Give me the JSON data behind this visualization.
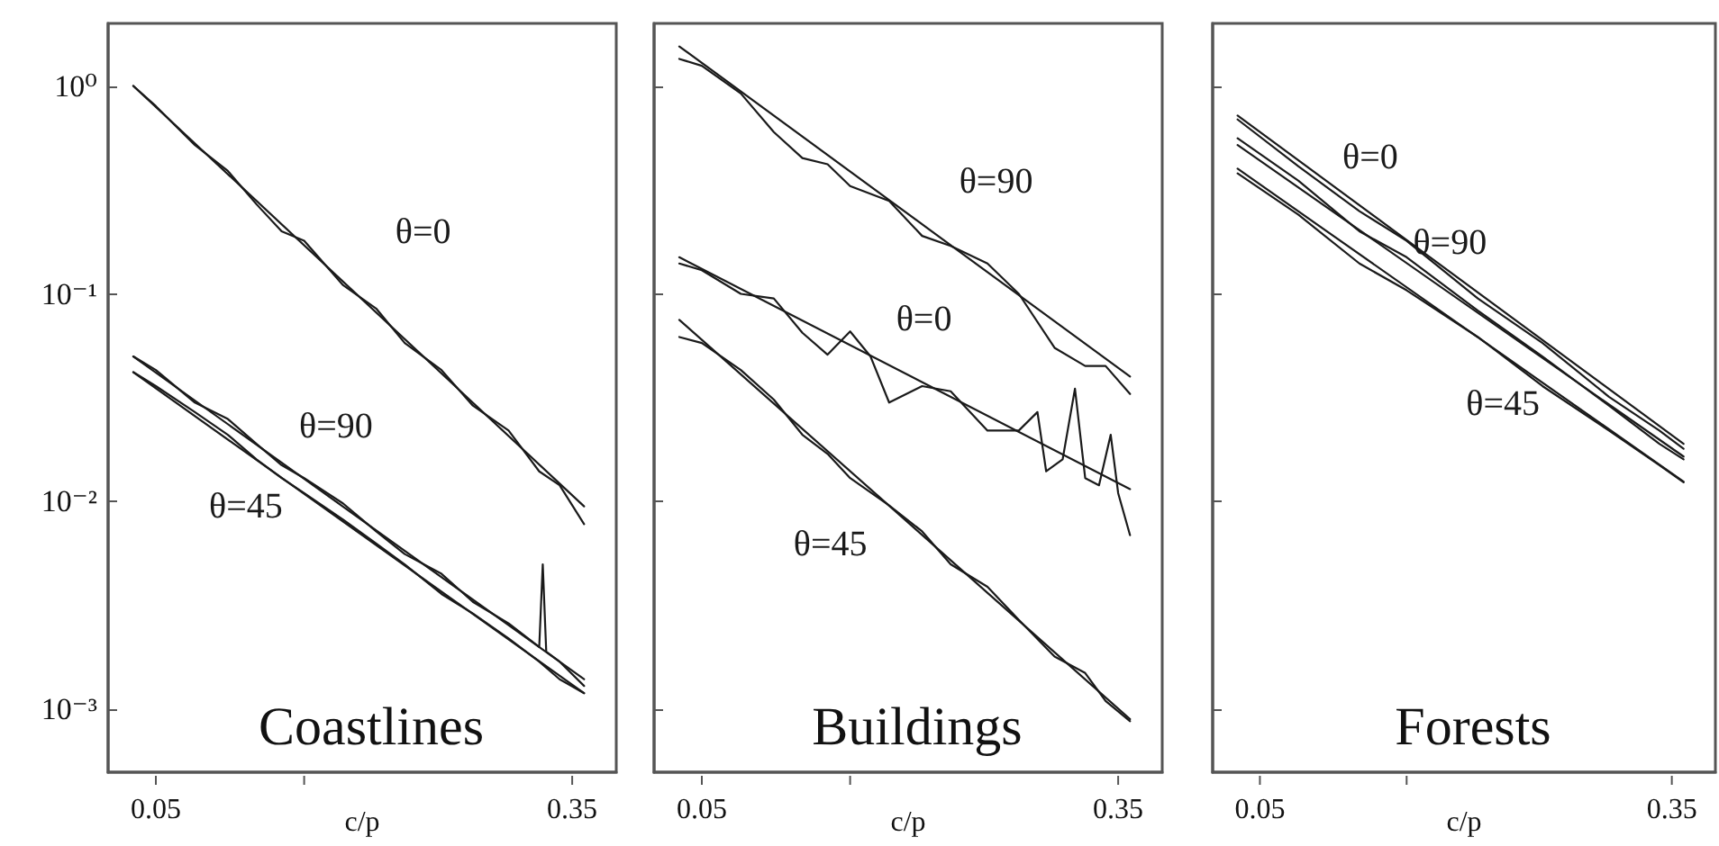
{
  "chart_data": [
    {
      "type": "line",
      "title": "Coastlines",
      "xlabel": "c/p",
      "log": "xy",
      "marker": "none",
      "xlim": [
        0.04,
        0.43
      ],
      "xticks": [
        {
          "value": 0.05,
          "label": "0.05"
        },
        {
          "value": 0.1,
          "label": null
        },
        {
          "value": 0.35,
          "label": "0.35"
        }
      ],
      "ylim": [
        0.0005,
        2
      ],
      "yticks": [
        {
          "value": 1,
          "label": "10⁰"
        },
        {
          "value": 0.1,
          "label": "10⁻¹"
        },
        {
          "value": 0.01,
          "label": "10⁻²"
        },
        {
          "value": 0.001,
          "label": "10⁻³"
        }
      ],
      "series": [
        {
          "name": "θ=0",
          "color": "#1a1a1a",
          "x": [
            0.045,
            0.05,
            0.06,
            0.07,
            0.08,
            0.09,
            0.1,
            0.12,
            0.14,
            0.16,
            0.19,
            0.22,
            0.26,
            0.3,
            0.33,
            0.37
          ],
          "values": [
            1.0,
            0.8,
            0.52,
            0.39,
            0.27,
            0.2,
            0.18,
            0.11,
            0.085,
            0.058,
            0.043,
            0.029,
            0.022,
            0.014,
            0.012,
            0.0078
          ]
        },
        {
          "color": "#1a1a1a",
          "x": [
            0.045,
            0.37
          ],
          "values": [
            1.0,
            0.0095
          ]
        },
        {
          "name": "θ=90",
          "color": "#1a1a1a",
          "x": [
            0.045,
            0.05,
            0.06,
            0.07,
            0.08,
            0.09,
            0.1,
            0.12,
            0.14,
            0.16,
            0.19,
            0.22,
            0.26,
            0.3,
            0.305,
            0.31,
            0.33,
            0.37
          ],
          "values": [
            0.05,
            0.043,
            0.03,
            0.025,
            0.019,
            0.015,
            0.013,
            0.0098,
            0.0072,
            0.0056,
            0.0045,
            0.0033,
            0.0026,
            0.002,
            0.005,
            0.0019,
            0.0017,
            0.0013
          ]
        },
        {
          "color": "#1a1a1a",
          "x": [
            0.045,
            0.37
          ],
          "values": [
            0.05,
            0.0014
          ]
        },
        {
          "name": "θ=45",
          "color": "#1a1a1a",
          "x": [
            0.045,
            0.05,
            0.06,
            0.07,
            0.08,
            0.09,
            0.1,
            0.12,
            0.14,
            0.16,
            0.19,
            0.22,
            0.26,
            0.3,
            0.33,
            0.37
          ],
          "values": [
            0.042,
            0.036,
            0.027,
            0.021,
            0.016,
            0.013,
            0.011,
            0.0082,
            0.0063,
            0.005,
            0.0036,
            0.0029,
            0.0022,
            0.0017,
            0.0014,
            0.0012
          ]
        },
        {
          "color": "#1a1a1a",
          "x": [
            0.045,
            0.37
          ],
          "values": [
            0.042,
            0.0012
          ]
        }
      ]
    },
    {
      "type": "line",
      "title": "Buildings",
      "xlabel": "c/p",
      "log": "xy",
      "marker": "none",
      "tick_labels": "x",
      "xlim": [
        0.04,
        0.43
      ],
      "xticks": [
        {
          "value": 0.05,
          "label": "0.05"
        },
        {
          "value": 0.1,
          "label": null
        },
        {
          "value": 0.35,
          "label": "0.35"
        }
      ],
      "ylim": [
        0.0005,
        2
      ],
      "yticks": [
        1,
        0.1,
        0.01,
        0.001
      ],
      "series": [
        {
          "name": "θ=90",
          "color": "#1a1a1a",
          "x": [
            0.045,
            0.05,
            0.06,
            0.07,
            0.08,
            0.09,
            0.1,
            0.12,
            0.14,
            0.16,
            0.19,
            0.22,
            0.26,
            0.3,
            0.33,
            0.37
          ],
          "values": [
            1.35,
            1.25,
            0.92,
            0.6,
            0.45,
            0.42,
            0.33,
            0.28,
            0.19,
            0.17,
            0.14,
            0.1,
            0.055,
            0.045,
            0.045,
            0.033
          ]
        },
        {
          "color": "#1a1a1a",
          "x": [
            0.045,
            0.37
          ],
          "values": [
            1.55,
            0.04
          ]
        },
        {
          "name": "θ=0",
          "color": "#1a1a1a",
          "x": [
            0.045,
            0.05,
            0.06,
            0.07,
            0.08,
            0.09,
            0.1,
            0.11,
            0.12,
            0.14,
            0.16,
            0.19,
            0.22,
            0.24,
            0.25,
            0.27,
            0.286,
            0.3,
            0.32,
            0.338,
            0.35,
            0.37
          ],
          "values": [
            0.14,
            0.13,
            0.1,
            0.095,
            0.065,
            0.051,
            0.066,
            0.05,
            0.03,
            0.036,
            0.034,
            0.022,
            0.022,
            0.027,
            0.014,
            0.016,
            0.035,
            0.013,
            0.012,
            0.021,
            0.011,
            0.0069
          ]
        },
        {
          "color": "#1a1a1a",
          "x": [
            0.045,
            0.37
          ],
          "values": [
            0.15,
            0.0115
          ]
        },
        {
          "name": "θ=45",
          "color": "#1a1a1a",
          "x": [
            0.045,
            0.05,
            0.06,
            0.07,
            0.08,
            0.09,
            0.1,
            0.12,
            0.14,
            0.16,
            0.19,
            0.22,
            0.26,
            0.3,
            0.33,
            0.37
          ],
          "values": [
            0.062,
            0.058,
            0.043,
            0.031,
            0.021,
            0.017,
            0.013,
            0.0096,
            0.0072,
            0.005,
            0.0039,
            0.0027,
            0.0018,
            0.0015,
            0.0011,
            0.00088
          ]
        },
        {
          "color": "#1a1a1a",
          "x": [
            0.045,
            0.37
          ],
          "values": [
            0.075,
            0.0009
          ]
        }
      ]
    },
    {
      "type": "line",
      "title": "Forests",
      "xlabel": "c/p",
      "log": "xy",
      "marker": "none",
      "tick_labels": "x",
      "xlim": [
        0.04,
        0.43
      ],
      "xticks": [
        {
          "value": 0.05,
          "label": "0.05"
        },
        {
          "value": 0.1,
          "label": null
        },
        {
          "value": 0.35,
          "label": "0.35"
        }
      ],
      "ylim": [
        0.0005,
        2
      ],
      "yticks": [
        1,
        0.1,
        0.01,
        0.001
      ],
      "series": [
        {
          "name": "θ=0",
          "color": "#1a1a1a",
          "x": [
            0.045,
            0.06,
            0.08,
            0.1,
            0.14,
            0.19,
            0.26,
            0.33,
            0.37
          ],
          "values": [
            0.69,
            0.41,
            0.25,
            0.18,
            0.095,
            0.058,
            0.032,
            0.022,
            0.018
          ]
        },
        {
          "color": "#1a1a1a",
          "x": [
            0.045,
            0.37
          ],
          "values": [
            0.72,
            0.019
          ]
        },
        {
          "name": "θ=90",
          "color": "#1a1a1a",
          "x": [
            0.045,
            0.06,
            0.08,
            0.1,
            0.14,
            0.19,
            0.26,
            0.33,
            0.37
          ],
          "values": [
            0.56,
            0.35,
            0.2,
            0.15,
            0.083,
            0.05,
            0.029,
            0.019,
            0.016
          ]
        },
        {
          "color": "#1a1a1a",
          "x": [
            0.045,
            0.37
          ],
          "values": [
            0.52,
            0.0165
          ]
        },
        {
          "name": "θ=45",
          "color": "#1a1a1a",
          "x": [
            0.045,
            0.06,
            0.08,
            0.1,
            0.14,
            0.19,
            0.26,
            0.33,
            0.37
          ],
          "values": [
            0.38,
            0.24,
            0.14,
            0.104,
            0.062,
            0.036,
            0.022,
            0.015,
            0.0124
          ]
        },
        {
          "color": "#1a1a1a",
          "x": [
            0.045,
            0.37
          ],
          "values": [
            0.4,
            0.0125
          ]
        }
      ]
    }
  ]
}
